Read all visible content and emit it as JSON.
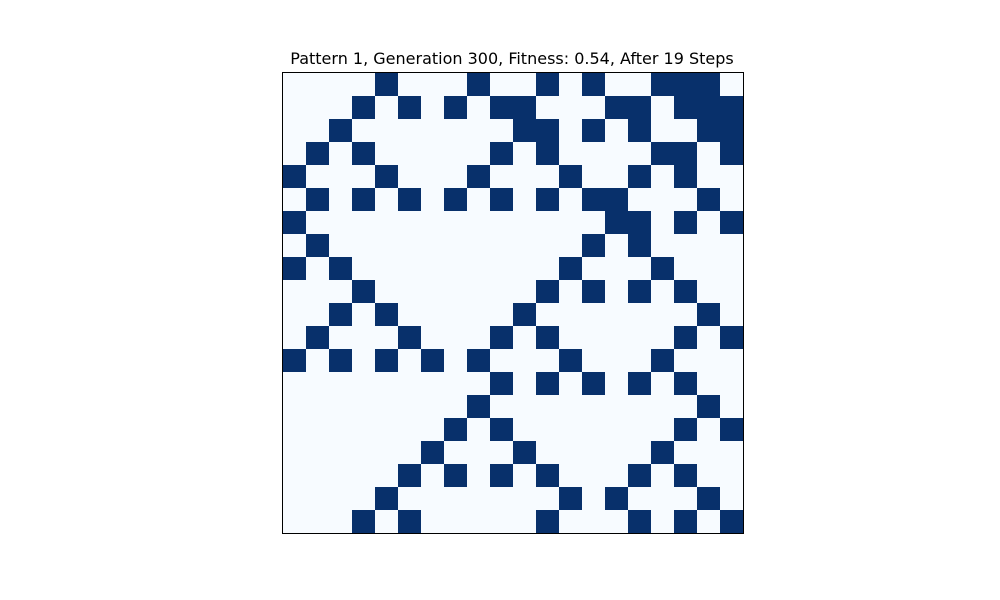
{
  "chart_data": {
    "type": "heatmap",
    "title": "Pattern 1, Generation 300, Fitness: 0.54, After 19 Steps",
    "xlabel": "",
    "ylabel": "",
    "rows": 20,
    "cols": 20,
    "grid": false,
    "colors": {
      "0": "#f7fbff",
      "1": "#08306b"
    },
    "border_color": "#000000",
    "values": [
      [
        0,
        0,
        0,
        0,
        1,
        0,
        0,
        0,
        1,
        0,
        0,
        1,
        0,
        1,
        0,
        0,
        1,
        1,
        1,
        0
      ],
      [
        0,
        0,
        0,
        1,
        0,
        1,
        0,
        1,
        0,
        1,
        1,
        0,
        0,
        0,
        1,
        1,
        0,
        1,
        1,
        1
      ],
      [
        0,
        0,
        1,
        0,
        0,
        0,
        0,
        0,
        0,
        0,
        1,
        1,
        0,
        1,
        0,
        1,
        0,
        0,
        1,
        1
      ],
      [
        0,
        1,
        0,
        1,
        0,
        0,
        0,
        0,
        0,
        1,
        0,
        1,
        0,
        0,
        0,
        0,
        1,
        1,
        0,
        1
      ],
      [
        1,
        0,
        0,
        0,
        1,
        0,
        0,
        0,
        1,
        0,
        0,
        0,
        1,
        0,
        0,
        1,
        0,
        1,
        0,
        0
      ],
      [
        0,
        1,
        0,
        1,
        0,
        1,
        0,
        1,
        0,
        1,
        0,
        1,
        0,
        1,
        1,
        0,
        0,
        0,
        1,
        0
      ],
      [
        1,
        0,
        0,
        0,
        0,
        0,
        0,
        0,
        0,
        0,
        0,
        0,
        0,
        0,
        1,
        1,
        0,
        1,
        0,
        1
      ],
      [
        0,
        1,
        0,
        0,
        0,
        0,
        0,
        0,
        0,
        0,
        0,
        0,
        0,
        1,
        0,
        1,
        0,
        0,
        0,
        0
      ],
      [
        1,
        0,
        1,
        0,
        0,
        0,
        0,
        0,
        0,
        0,
        0,
        0,
        1,
        0,
        0,
        0,
        1,
        0,
        0,
        0
      ],
      [
        0,
        0,
        0,
        1,
        0,
        0,
        0,
        0,
        0,
        0,
        0,
        1,
        0,
        1,
        0,
        1,
        0,
        1,
        0,
        0
      ],
      [
        0,
        0,
        1,
        0,
        1,
        0,
        0,
        0,
        0,
        0,
        1,
        0,
        0,
        0,
        0,
        0,
        0,
        0,
        1,
        0
      ],
      [
        0,
        1,
        0,
        0,
        0,
        1,
        0,
        0,
        0,
        1,
        0,
        1,
        0,
        0,
        0,
        0,
        0,
        1,
        0,
        1
      ],
      [
        1,
        0,
        1,
        0,
        1,
        0,
        1,
        0,
        1,
        0,
        0,
        0,
        1,
        0,
        0,
        0,
        1,
        0,
        0,
        0
      ],
      [
        0,
        0,
        0,
        0,
        0,
        0,
        0,
        0,
        0,
        1,
        0,
        1,
        0,
        1,
        0,
        1,
        0,
        1,
        0,
        0
      ],
      [
        0,
        0,
        0,
        0,
        0,
        0,
        0,
        0,
        1,
        0,
        0,
        0,
        0,
        0,
        0,
        0,
        0,
        0,
        1,
        0
      ],
      [
        0,
        0,
        0,
        0,
        0,
        0,
        0,
        1,
        0,
        1,
        0,
        0,
        0,
        0,
        0,
        0,
        0,
        1,
        0,
        1
      ],
      [
        0,
        0,
        0,
        0,
        0,
        0,
        1,
        0,
        0,
        0,
        1,
        0,
        0,
        0,
        0,
        0,
        1,
        0,
        0,
        0
      ],
      [
        0,
        0,
        0,
        0,
        0,
        1,
        0,
        1,
        0,
        1,
        0,
        1,
        0,
        0,
        0,
        1,
        0,
        1,
        0,
        0
      ],
      [
        0,
        0,
        0,
        0,
        1,
        0,
        0,
        0,
        0,
        0,
        0,
        0,
        1,
        0,
        1,
        0,
        0,
        0,
        1,
        0
      ],
      [
        0,
        0,
        0,
        1,
        0,
        1,
        0,
        0,
        0,
        0,
        0,
        1,
        0,
        0,
        0,
        1,
        0,
        1,
        0,
        1
      ]
    ]
  }
}
